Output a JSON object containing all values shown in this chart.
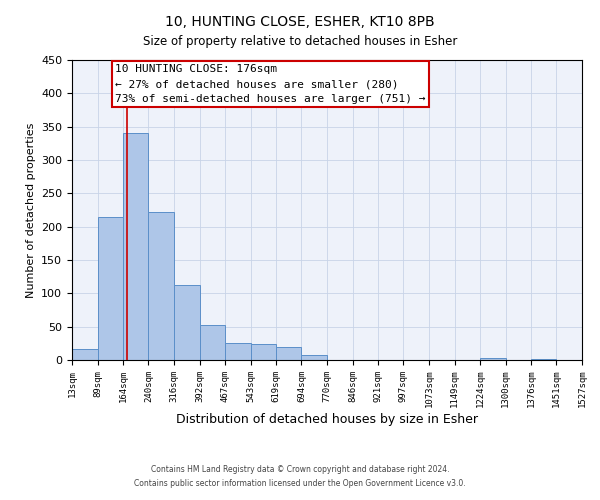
{
  "title": "10, HUNTING CLOSE, ESHER, KT10 8PB",
  "subtitle": "Size of property relative to detached houses in Esher",
  "xlabel": "Distribution of detached houses by size in Esher",
  "ylabel": "Number of detached properties",
  "bar_edges": [
    13,
    89,
    164,
    240,
    316,
    392,
    467,
    543,
    619,
    694,
    770,
    846,
    921,
    997,
    1073,
    1149,
    1224,
    1300,
    1376,
    1451,
    1527
  ],
  "bar_heights": [
    16,
    215,
    341,
    222,
    113,
    53,
    25,
    24,
    20,
    7,
    0,
    0,
    0,
    0,
    0,
    0,
    3,
    0,
    2,
    0,
    2
  ],
  "bar_color": "#aec6e8",
  "bar_edge_color": "#5b8fc9",
  "ylim": [
    0,
    450
  ],
  "yticks": [
    0,
    50,
    100,
    150,
    200,
    250,
    300,
    350,
    400,
    450
  ],
  "tick_labels": [
    "13sqm",
    "89sqm",
    "164sqm",
    "240sqm",
    "316sqm",
    "392sqm",
    "467sqm",
    "543sqm",
    "619sqm",
    "694sqm",
    "770sqm",
    "846sqm",
    "921sqm",
    "997sqm",
    "1073sqm",
    "1149sqm",
    "1224sqm",
    "1300sqm",
    "1376sqm",
    "1451sqm",
    "1527sqm"
  ],
  "vline_x": 176,
  "vline_color": "#cc0000",
  "annotation_line1": "10 HUNTING CLOSE: 176sqm",
  "annotation_line2": "← 27% of detached houses are smaller (280)",
  "annotation_line3": "73% of semi-detached houses are larger (751) →",
  "bg_color": "#eef2fa",
  "grid_color": "#c8d4e8",
  "footer_line1": "Contains HM Land Registry data © Crown copyright and database right 2024.",
  "footer_line2": "Contains public sector information licensed under the Open Government Licence v3.0."
}
